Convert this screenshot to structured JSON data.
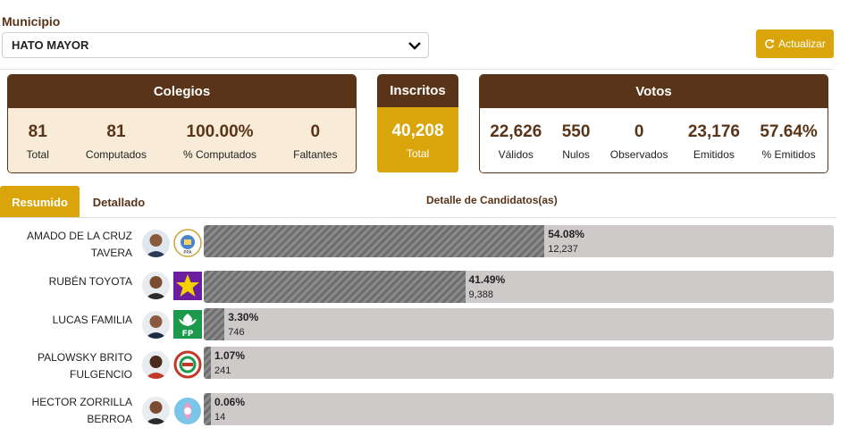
{
  "filters": {
    "municipio_label": "Municipio",
    "municipio_value": "HATO MAYOR",
    "update_label": "Actualizar"
  },
  "colegios": {
    "title": "Colegios",
    "stats": [
      {
        "value": "81",
        "label": "Total"
      },
      {
        "value": "81",
        "label": "Computados"
      },
      {
        "value": "100.00%",
        "label": "% Computados"
      },
      {
        "value": "0",
        "label": "Faltantes"
      }
    ]
  },
  "inscritos": {
    "title": "Inscritos",
    "value": "40,208",
    "label": "Total"
  },
  "votos": {
    "title": "Votos",
    "stats": [
      {
        "value": "22,626",
        "label": "Válidos"
      },
      {
        "value": "550",
        "label": "Nulos"
      },
      {
        "value": "0",
        "label": "Observados"
      },
      {
        "value": "23,176",
        "label": "Emitidos"
      },
      {
        "value": "57.64%",
        "label": "% Emitidos"
      }
    ]
  },
  "tabs": {
    "resumen": "Resumido",
    "detallado": "Detallado"
  },
  "detail_title": "Detalle de Candidatos(as)",
  "colors": {
    "brand_brown": "#5a3418",
    "accent_gold": "#d9a50a"
  },
  "candidates": [
    {
      "name_line1": "AMADO DE LA CRUZ",
      "name_line2": "TAVERA",
      "percent_label": "54.08%",
      "percent": 54.08,
      "votes": "12,237",
      "party_icon": "pld-logo-icon"
    },
    {
      "name_line1": "RUBÉN TOYOTA",
      "name_line2": "",
      "percent_label": "41.49%",
      "percent": 41.49,
      "votes": "9,388",
      "party_icon": "star-logo-icon"
    },
    {
      "name_line1": "LUCAS FAMILIA",
      "name_line2": "",
      "percent_label": "3.30%",
      "percent": 3.3,
      "votes": "746",
      "party_icon": "fp-logo-icon"
    },
    {
      "name_line1": "PALOWSKY BRITO",
      "name_line2": "FULGENCIO",
      "percent_label": "1.07%",
      "percent": 1.07,
      "votes": "241",
      "party_icon": "seal-logo-icon"
    },
    {
      "name_line1": "HECTOR ZORRILLA",
      "name_line2": "BERROA",
      "percent_label": "0.06%",
      "percent": 0.06,
      "votes": "14",
      "party_icon": "opd-logo-icon"
    }
  ]
}
